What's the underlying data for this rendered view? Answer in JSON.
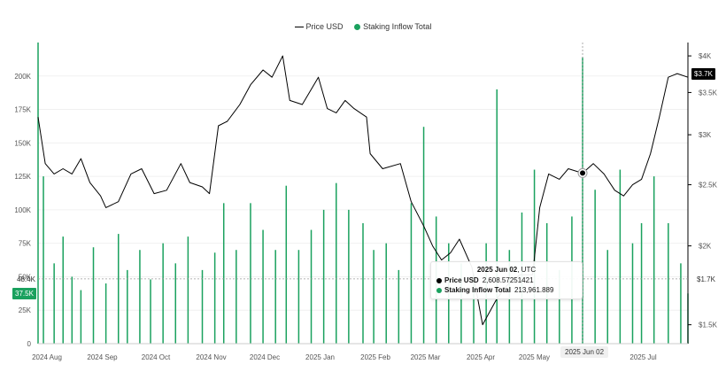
{
  "legend": {
    "price_label": "Price USD",
    "inflow_label": "Staking Inflow Total"
  },
  "colors": {
    "price_line": "#000000",
    "inflow_bar": "#1aa15e",
    "inflow_badge": "#1aa15e",
    "price_badge": "#000000",
    "grid": "#f0f0f0"
  },
  "tooltip": {
    "date": "2025 Jun 02",
    "tz": ", UTC",
    "price_name": "Price USD",
    "price_value": "2,608.57251421",
    "inflow_name": "Staking Inflow Total",
    "inflow_value": "213,961.889"
  },
  "badges": {
    "left_guide": "48.4K",
    "left_current": "37.5K",
    "right_current": "$3.7K",
    "right_guide": "$1.7K",
    "x_hover": "2025 Jun 02"
  },
  "chart_data": {
    "type": "bar+line",
    "x_range": [
      "2024-08-01",
      "2025-07-31"
    ],
    "x_ticks": [
      {
        "label": "2024 Aug",
        "date": "2024-08-01"
      },
      {
        "label": "2024 Sep",
        "date": "2024-09-01"
      },
      {
        "label": "2024 Oct",
        "date": "2024-10-01"
      },
      {
        "label": "2024 Nov",
        "date": "2024-11-01"
      },
      {
        "label": "2024 Dec",
        "date": "2024-12-01"
      },
      {
        "label": "2025 Jan",
        "date": "2025-01-01"
      },
      {
        "label": "2025 Feb",
        "date": "2025-02-01"
      },
      {
        "label": "2025 Mar",
        "date": "2025-03-01"
      },
      {
        "label": "2025 Apr",
        "date": "2025-04-01"
      },
      {
        "label": "2025 May",
        "date": "2025-05-01"
      },
      {
        "label": "2025 Jul",
        "date": "2025-07-01"
      }
    ],
    "y_left": {
      "range": [
        0,
        225000
      ],
      "ticks": [
        {
          "label": "0",
          "value": 0
        },
        {
          "label": "25K",
          "value": 25000
        },
        {
          "label": "50K",
          "value": 50000
        },
        {
          "label": "75K",
          "value": 75000
        },
        {
          "label": "100K",
          "value": 100000
        },
        {
          "label": "125K",
          "value": 125000
        },
        {
          "label": "150K",
          "value": 150000
        },
        {
          "label": "175K",
          "value": 175000
        },
        {
          "label": "200K",
          "value": 200000
        }
      ]
    },
    "y_right": {
      "scale": "log",
      "range": [
        1400,
        4200
      ],
      "ticks": [
        {
          "label": "$1.5K",
          "value": 1500
        },
        {
          "label": "$2K",
          "value": 2000
        },
        {
          "label": "$2.5K",
          "value": 2500
        },
        {
          "label": "$3K",
          "value": 3000
        },
        {
          "label": "$3.5K",
          "value": 3500
        },
        {
          "label": "$4K",
          "value": 4000
        }
      ]
    },
    "highlight": {
      "date": "2025-06-02",
      "price": 2608.57,
      "inflow": 213961.889,
      "left_guide_value": 48400,
      "right_guide_value": 1700
    },
    "price_series": {
      "name": "Price USD",
      "points": [
        [
          "2024-08-01",
          3200
        ],
        [
          "2024-08-05",
          2700
        ],
        [
          "2024-08-10",
          2600
        ],
        [
          "2024-08-15",
          2650
        ],
        [
          "2024-08-20",
          2600
        ],
        [
          "2024-08-25",
          2750
        ],
        [
          "2024-08-30",
          2520
        ],
        [
          "2024-09-05",
          2400
        ],
        [
          "2024-09-08",
          2300
        ],
        [
          "2024-09-15",
          2350
        ],
        [
          "2024-09-22",
          2600
        ],
        [
          "2024-09-28",
          2650
        ],
        [
          "2024-10-05",
          2420
        ],
        [
          "2024-10-12",
          2450
        ],
        [
          "2024-10-20",
          2700
        ],
        [
          "2024-10-25",
          2520
        ],
        [
          "2024-11-01",
          2480
        ],
        [
          "2024-11-05",
          2420
        ],
        [
          "2024-11-10",
          3100
        ],
        [
          "2024-11-15",
          3150
        ],
        [
          "2024-11-22",
          3350
        ],
        [
          "2024-11-28",
          3600
        ],
        [
          "2024-12-05",
          3800
        ],
        [
          "2024-12-10",
          3700
        ],
        [
          "2024-12-16",
          4000
        ],
        [
          "2024-12-20",
          3400
        ],
        [
          "2024-12-27",
          3350
        ],
        [
          "2025-01-05",
          3700
        ],
        [
          "2025-01-10",
          3300
        ],
        [
          "2025-01-15",
          3250
        ],
        [
          "2025-01-20",
          3400
        ],
        [
          "2025-01-25",
          3300
        ],
        [
          "2025-02-01",
          3200
        ],
        [
          "2025-02-03",
          2800
        ],
        [
          "2025-02-10",
          2650
        ],
        [
          "2025-02-20",
          2700
        ],
        [
          "2025-02-26",
          2350
        ],
        [
          "2025-03-05",
          2150
        ],
        [
          "2025-03-10",
          2000
        ],
        [
          "2025-03-15",
          1900
        ],
        [
          "2025-03-20",
          1950
        ],
        [
          "2025-03-25",
          2050
        ],
        [
          "2025-04-01",
          1850
        ],
        [
          "2025-04-07",
          1500
        ],
        [
          "2025-04-15",
          1650
        ],
        [
          "2025-04-22",
          1750
        ],
        [
          "2025-04-28",
          1800
        ],
        [
          "2025-05-05",
          1800
        ],
        [
          "2025-05-09",
          2300
        ],
        [
          "2025-05-14",
          2600
        ],
        [
          "2025-05-20",
          2550
        ],
        [
          "2025-05-25",
          2650
        ],
        [
          "2025-06-02",
          2608
        ],
        [
          "2025-06-08",
          2700
        ],
        [
          "2025-06-14",
          2600
        ],
        [
          "2025-06-20",
          2450
        ],
        [
          "2025-06-25",
          2400
        ],
        [
          "2025-06-30",
          2500
        ],
        [
          "2025-07-05",
          2550
        ],
        [
          "2025-07-10",
          2800
        ],
        [
          "2025-07-15",
          3200
        ],
        [
          "2025-07-20",
          3700
        ],
        [
          "2025-07-25",
          3750
        ],
        [
          "2025-07-31",
          3700
        ]
      ]
    },
    "inflow_series": {
      "name": "Staking Inflow Total",
      "points": [
        [
          "2024-08-01",
          225000
        ],
        [
          "2024-08-04",
          125000
        ],
        [
          "2024-08-10",
          60000
        ],
        [
          "2024-08-15",
          80000
        ],
        [
          "2024-08-20",
          50000
        ],
        [
          "2024-08-25",
          40000
        ],
        [
          "2024-09-01",
          72000
        ],
        [
          "2024-09-08",
          45000
        ],
        [
          "2024-09-15",
          82000
        ],
        [
          "2024-09-20",
          55000
        ],
        [
          "2024-09-27",
          70000
        ],
        [
          "2024-10-03",
          48000
        ],
        [
          "2024-10-10",
          75000
        ],
        [
          "2024-10-17",
          60000
        ],
        [
          "2024-10-24",
          80000
        ],
        [
          "2024-11-01",
          55000
        ],
        [
          "2024-11-08",
          68000
        ],
        [
          "2024-11-13",
          105000
        ],
        [
          "2024-11-20",
          70000
        ],
        [
          "2024-11-28",
          105000
        ],
        [
          "2024-12-05",
          85000
        ],
        [
          "2024-12-12",
          70000
        ],
        [
          "2024-12-18",
          118000
        ],
        [
          "2024-12-25",
          70000
        ],
        [
          "2025-01-01",
          85000
        ],
        [
          "2025-01-08",
          100000
        ],
        [
          "2025-01-15",
          120000
        ],
        [
          "2025-01-22",
          100000
        ],
        [
          "2025-01-30",
          90000
        ],
        [
          "2025-02-05",
          70000
        ],
        [
          "2025-02-12",
          75000
        ],
        [
          "2025-02-19",
          55000
        ],
        [
          "2025-02-26",
          105000
        ],
        [
          "2025-03-05",
          162000
        ],
        [
          "2025-03-12",
          95000
        ],
        [
          "2025-03-19",
          75000
        ],
        [
          "2025-03-26",
          60000
        ],
        [
          "2025-04-02",
          52000
        ],
        [
          "2025-04-09",
          75000
        ],
        [
          "2025-04-15",
          190000
        ],
        [
          "2025-04-22",
          70000
        ],
        [
          "2025-04-29",
          98000
        ],
        [
          "2025-05-06",
          130000
        ],
        [
          "2025-05-13",
          90000
        ],
        [
          "2025-05-20",
          55000
        ],
        [
          "2025-05-27",
          95000
        ],
        [
          "2025-06-02",
          213962
        ],
        [
          "2025-06-09",
          115000
        ],
        [
          "2025-06-16",
          70000
        ],
        [
          "2025-06-23",
          130000
        ],
        [
          "2025-06-30",
          75000
        ],
        [
          "2025-07-05",
          90000
        ],
        [
          "2025-07-12",
          125000
        ],
        [
          "2025-07-20",
          90000
        ],
        [
          "2025-07-27",
          60000
        ],
        [
          "2025-07-31",
          37500
        ]
      ]
    }
  }
}
